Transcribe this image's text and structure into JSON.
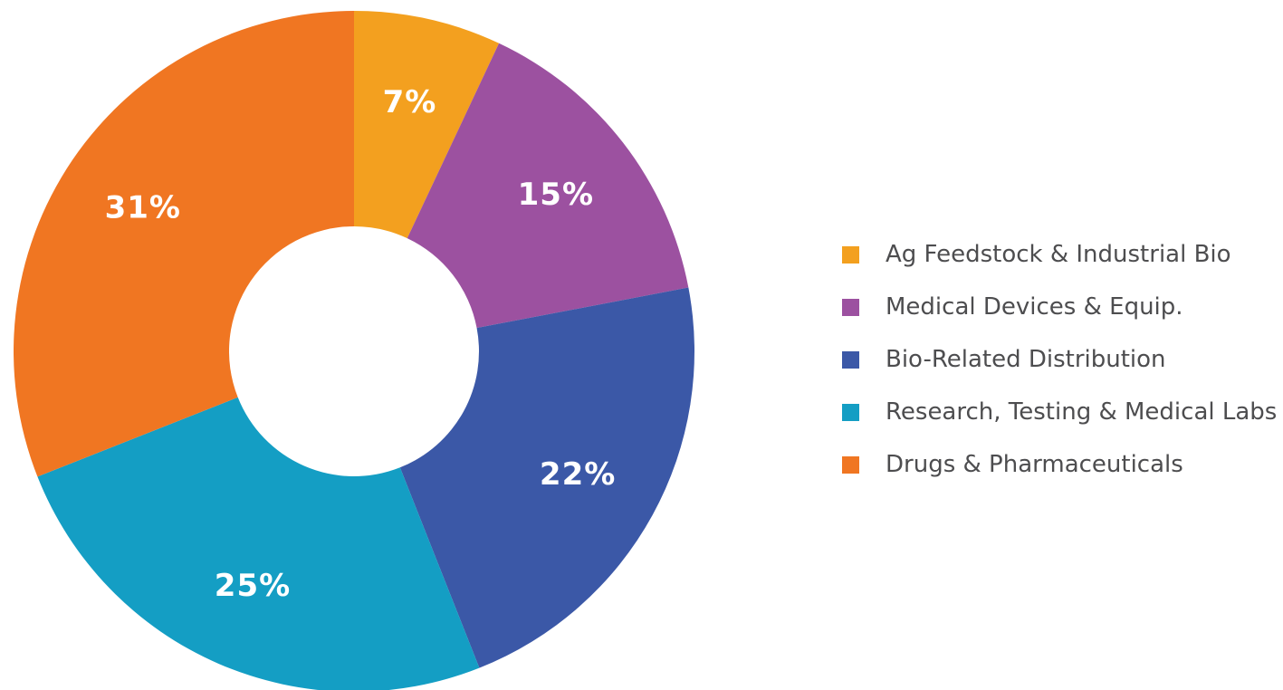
{
  "chart_data": {
    "type": "pie",
    "donut": true,
    "legend_position": "right",
    "categories": [
      "Ag Feedstock & Industrial Bio",
      "Medical Devices & Equip.",
      "Bio-Related Distribution",
      "Research, Testing & Medical Labs",
      "Drugs & Pharmaceuticals"
    ],
    "values": [
      7,
      15,
      22,
      25,
      31
    ],
    "data_labels": [
      "7%",
      "15%",
      "22%",
      "25%",
      "31%"
    ],
    "colors": [
      "#f3a01f",
      "#9c51a0",
      "#3b58a7",
      "#149ec4",
      "#f07622"
    ]
  }
}
